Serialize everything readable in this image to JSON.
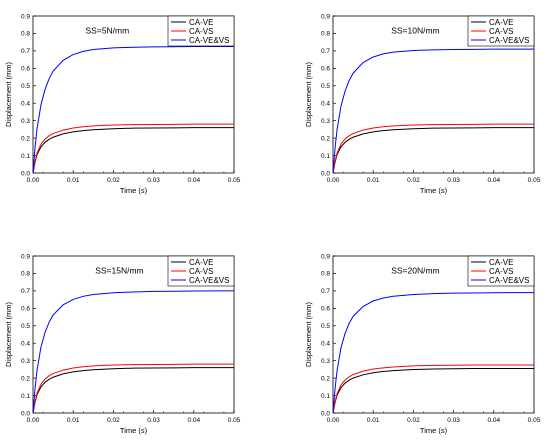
{
  "chart_data": [
    {
      "type": "line",
      "xlabel": "Time (s)",
      "ylabel": "Displacement (mm)",
      "xlim": [
        0,
        0.05
      ],
      "ylim": [
        0,
        0.9
      ],
      "xticks": [
        "0.00",
        "0.01",
        "0.02",
        "0.03",
        "0.04",
        "0.05"
      ],
      "yticks": [
        "0.0",
        "0.1",
        "0.2",
        "0.3",
        "0.4",
        "0.5",
        "0.6",
        "0.7",
        "0.8",
        "0.9"
      ],
      "annotation": "SS=5N/mm",
      "legend_position": "top-right",
      "grid": false,
      "x": [
        0,
        0.0005,
        0.001,
        0.002,
        0.003,
        0.004,
        0.005,
        0.0075,
        0.01,
        0.0125,
        0.015,
        0.02,
        0.025,
        0.03,
        0.035,
        0.04,
        0.045,
        0.05
      ],
      "series": [
        {
          "name": "CA-VE",
          "color": "#000000",
          "values": [
            0,
            0.06,
            0.105,
            0.15,
            0.176,
            0.193,
            0.205,
            0.224,
            0.236,
            0.243,
            0.248,
            0.254,
            0.257,
            0.258,
            0.259,
            0.26,
            0.26,
            0.26
          ]
        },
        {
          "name": "CA-VS",
          "color": "#ff0000",
          "values": [
            0,
            0.065,
            0.114,
            0.166,
            0.195,
            0.213,
            0.226,
            0.246,
            0.258,
            0.265,
            0.27,
            0.275,
            0.277,
            0.278,
            0.279,
            0.28,
            0.28,
            0.28
          ]
        },
        {
          "name": "CA-VE&VS",
          "color": "#0000ff",
          "values": [
            0,
            0.142,
            0.253,
            0.393,
            0.479,
            0.54,
            0.584,
            0.646,
            0.679,
            0.697,
            0.708,
            0.717,
            0.721,
            0.723,
            0.724,
            0.725,
            0.725,
            0.725
          ]
        }
      ]
    },
    {
      "type": "line",
      "xlabel": "Time (s)",
      "ylabel": "Displacement (mm)",
      "xlim": [
        0,
        0.05
      ],
      "ylim": [
        0,
        0.9
      ],
      "xticks": [
        "0.00",
        "0.01",
        "0.02",
        "0.03",
        "0.04",
        "0.05"
      ],
      "yticks": [
        "0.0",
        "0.1",
        "0.2",
        "0.3",
        "0.4",
        "0.5",
        "0.6",
        "0.7",
        "0.8",
        "0.9"
      ],
      "annotation": "SS=10N/mm",
      "legend_position": "top-right",
      "grid": false,
      "x": [
        0,
        0.0005,
        0.001,
        0.002,
        0.003,
        0.004,
        0.005,
        0.0075,
        0.01,
        0.0125,
        0.015,
        0.02,
        0.025,
        0.03,
        0.035,
        0.04,
        0.045,
        0.05
      ],
      "series": [
        {
          "name": "CA-VE",
          "color": "#000000",
          "values": [
            0,
            0.06,
            0.105,
            0.15,
            0.176,
            0.193,
            0.205,
            0.224,
            0.236,
            0.243,
            0.248,
            0.254,
            0.257,
            0.258,
            0.259,
            0.26,
            0.26,
            0.26
          ]
        },
        {
          "name": "CA-VS",
          "color": "#ff0000",
          "values": [
            0,
            0.065,
            0.114,
            0.166,
            0.195,
            0.213,
            0.226,
            0.246,
            0.258,
            0.265,
            0.27,
            0.275,
            0.277,
            0.278,
            0.279,
            0.28,
            0.28,
            0.28
          ]
        },
        {
          "name": "CA-VE&VS",
          "color": "#0000ff",
          "values": [
            0,
            0.139,
            0.248,
            0.385,
            0.469,
            0.529,
            0.572,
            0.633,
            0.665,
            0.683,
            0.693,
            0.702,
            0.706,
            0.708,
            0.709,
            0.71,
            0.71,
            0.71
          ]
        }
      ]
    },
    {
      "type": "line",
      "xlabel": "Time (s)",
      "ylabel": "Displacement (mm)",
      "xlim": [
        0,
        0.05
      ],
      "ylim": [
        0,
        0.9
      ],
      "xticks": [
        "0.00",
        "0.01",
        "0.02",
        "0.03",
        "0.04",
        "0.05"
      ],
      "yticks": [
        "0.0",
        "0.1",
        "0.2",
        "0.3",
        "0.4",
        "0.5",
        "0.6",
        "0.7",
        "0.8",
        "0.9"
      ],
      "annotation": "SS=15N/mm",
      "legend_position": "top-right",
      "grid": false,
      "x": [
        0,
        0.0005,
        0.001,
        0.002,
        0.003,
        0.004,
        0.005,
        0.0075,
        0.01,
        0.0125,
        0.015,
        0.02,
        0.025,
        0.03,
        0.035,
        0.04,
        0.045,
        0.05
      ],
      "series": [
        {
          "name": "CA-VE",
          "color": "#000000",
          "values": [
            0,
            0.06,
            0.105,
            0.15,
            0.176,
            0.193,
            0.205,
            0.224,
            0.236,
            0.243,
            0.248,
            0.254,
            0.257,
            0.258,
            0.259,
            0.26,
            0.26,
            0.26
          ]
        },
        {
          "name": "CA-VS",
          "color": "#ff0000",
          "values": [
            0,
            0.065,
            0.114,
            0.166,
            0.195,
            0.213,
            0.226,
            0.246,
            0.258,
            0.265,
            0.27,
            0.275,
            0.277,
            0.278,
            0.279,
            0.28,
            0.28,
            0.28
          ]
        },
        {
          "name": "CA-VE&VS",
          "color": "#0000ff",
          "values": [
            0,
            0.138,
            0.245,
            0.38,
            0.462,
            0.52,
            0.562,
            0.62,
            0.651,
            0.669,
            0.679,
            0.689,
            0.694,
            0.697,
            0.698,
            0.699,
            0.7,
            0.7
          ]
        }
      ]
    },
    {
      "type": "line",
      "xlabel": "Time (s)",
      "ylabel": "Displacement (mm)",
      "xlim": [
        0,
        0.05
      ],
      "ylim": [
        0,
        0.9
      ],
      "xticks": [
        "0.00",
        "0.01",
        "0.02",
        "0.03",
        "0.04",
        "0.05"
      ],
      "yticks": [
        "0.0",
        "0.1",
        "0.2",
        "0.3",
        "0.4",
        "0.5",
        "0.6",
        "0.7",
        "0.8",
        "0.9"
      ],
      "annotation": "SS=20N/mm",
      "legend_position": "top-right",
      "grid": false,
      "x": [
        0,
        0.0005,
        0.001,
        0.002,
        0.003,
        0.004,
        0.005,
        0.0075,
        0.01,
        0.0125,
        0.015,
        0.02,
        0.025,
        0.03,
        0.035,
        0.04,
        0.045,
        0.05
      ],
      "series": [
        {
          "name": "CA-VE",
          "color": "#000000",
          "values": [
            0,
            0.058,
            0.102,
            0.146,
            0.171,
            0.188,
            0.2,
            0.219,
            0.231,
            0.238,
            0.243,
            0.249,
            0.252,
            0.254,
            0.255,
            0.255,
            0.255,
            0.255
          ]
        },
        {
          "name": "CA-VS",
          "color": "#ff0000",
          "values": [
            0,
            0.063,
            0.11,
            0.161,
            0.189,
            0.207,
            0.22,
            0.24,
            0.252,
            0.259,
            0.264,
            0.27,
            0.273,
            0.274,
            0.275,
            0.275,
            0.275,
            0.275
          ]
        },
        {
          "name": "CA-VE&VS",
          "color": "#0000ff",
          "values": [
            0,
            0.136,
            0.242,
            0.375,
            0.456,
            0.513,
            0.554,
            0.611,
            0.642,
            0.659,
            0.669,
            0.679,
            0.684,
            0.687,
            0.688,
            0.689,
            0.69,
            0.69
          ]
        }
      ]
    }
  ]
}
